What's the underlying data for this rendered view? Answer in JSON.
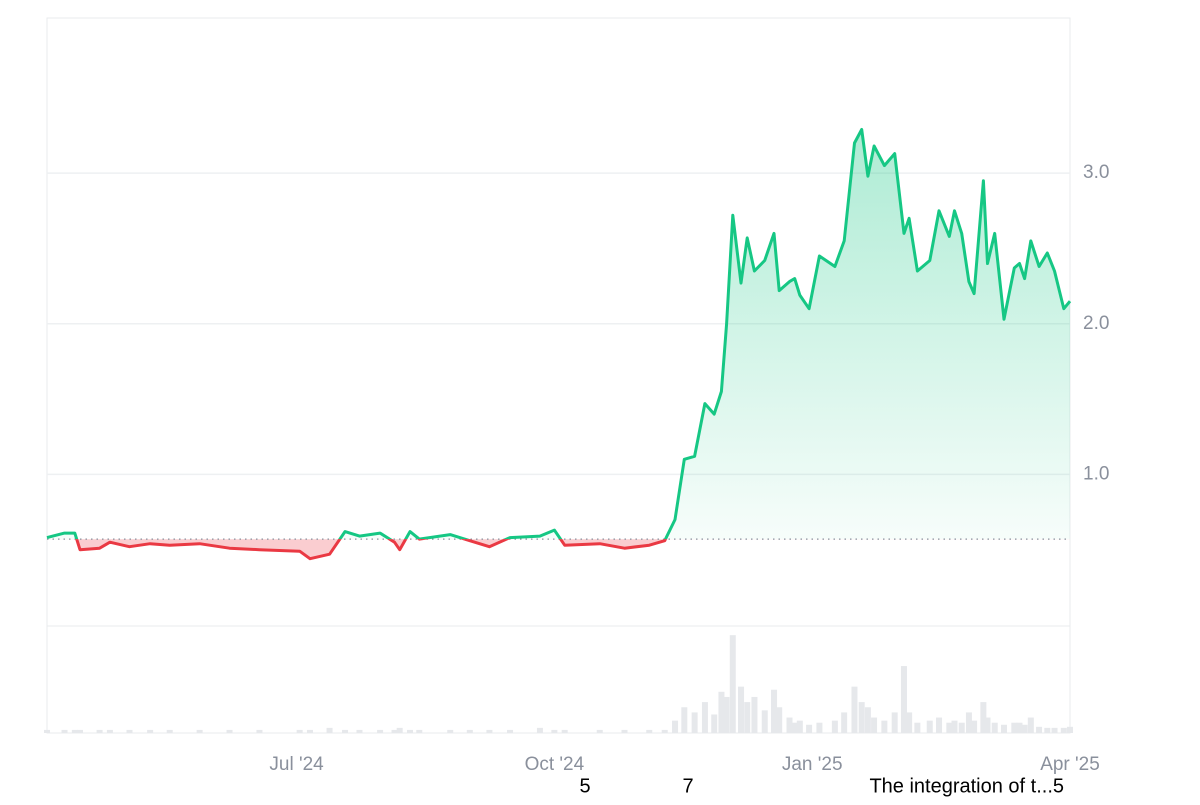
{
  "chart_data": {
    "type": "line",
    "x": [
      2024.258,
      2024.275,
      2024.285,
      2024.29,
      2024.309,
      2024.319,
      2024.338,
      2024.358,
      2024.377,
      2024.406,
      2024.435,
      2024.464,
      2024.503,
      2024.513,
      2024.532,
      2024.547,
      2024.561,
      2024.581,
      2024.595,
      2024.6,
      2024.61,
      2024.619,
      2024.649,
      2024.668,
      2024.687,
      2024.707,
      2024.736,
      2024.75,
      2024.76,
      2024.794,
      2024.818,
      2024.842,
      2024.857,
      2024.867,
      2024.876,
      2024.886,
      2024.896,
      2024.905,
      2024.912,
      2024.917,
      2024.923,
      2024.931,
      2024.937,
      2024.944,
      2024.954,
      2024.963,
      2024.968,
      2024.978,
      2024.983,
      2024.988,
      2024.997,
      2025.007,
      2025.022,
      2025.031,
      2025.041,
      2025.048,
      2025.054,
      2025.06,
      2025.07,
      2025.08,
      2025.089,
      2025.094,
      2025.102,
      2025.114,
      2025.123,
      2025.133,
      2025.138,
      2025.145,
      2025.152,
      2025.157,
      2025.166,
      2025.17,
      2025.177,
      2025.186,
      2025.196,
      2025.201,
      2025.206,
      2025.212,
      2025.22,
      2025.228,
      2025.235,
      2025.244,
      2025.25
    ],
    "values": [
      0.58,
      0.61,
      0.61,
      0.5,
      0.51,
      0.55,
      0.52,
      0.54,
      0.53,
      0.54,
      0.51,
      0.5,
      0.49,
      0.44,
      0.47,
      0.62,
      0.59,
      0.61,
      0.55,
      0.5,
      0.62,
      0.57,
      0.6,
      0.56,
      0.52,
      0.58,
      0.59,
      0.63,
      0.53,
      0.54,
      0.51,
      0.53,
      0.56,
      0.7,
      1.1,
      1.12,
      1.47,
      1.4,
      1.55,
      2.0,
      2.72,
      2.27,
      2.57,
      2.35,
      2.42,
      2.6,
      2.22,
      2.28,
      2.3,
      2.19,
      2.1,
      2.45,
      2.38,
      2.55,
      3.2,
      3.29,
      2.98,
      3.18,
      3.05,
      3.13,
      2.6,
      2.7,
      2.35,
      2.42,
      2.75,
      2.58,
      2.75,
      2.6,
      2.28,
      2.2,
      2.95,
      2.4,
      2.6,
      2.03,
      2.37,
      2.4,
      2.3,
      2.55,
      2.38,
      2.47,
      2.35,
      2.1,
      2.15
    ],
    "color_up": "#16c784",
    "color_down": "#ea3943",
    "baseline": 0.57,
    "volume": {
      "color": "#e6e8eb",
      "vlim": [
        0,
        100
      ],
      "values": [
        3,
        3,
        3,
        3,
        3,
        3,
        3,
        3,
        3,
        3,
        3,
        3,
        3,
        3,
        5,
        3,
        3,
        3,
        3,
        5,
        3,
        3,
        3,
        3,
        3,
        3,
        5,
        3,
        3,
        3,
        3,
        3,
        3,
        12,
        25,
        20,
        30,
        18,
        40,
        35,
        95,
        45,
        30,
        35,
        22,
        42,
        25,
        15,
        10,
        12,
        8,
        10,
        12,
        20,
        45,
        30,
        25,
        15,
        12,
        20,
        65,
        20,
        10,
        12,
        15,
        10,
        12,
        10,
        20,
        12,
        30,
        15,
        10,
        8,
        10,
        10,
        8,
        15,
        6,
        5,
        5,
        5,
        6
      ]
    },
    "xlim": [
      2024.258,
      2025.25
    ],
    "xticks": [
      {
        "value": 2024.5,
        "label": "Jul '24"
      },
      {
        "value": 2024.75,
        "label": "Oct '24"
      },
      {
        "value": 2025.0,
        "label": "Jan '25"
      },
      {
        "value": 2025.25,
        "label": "Apr '25"
      }
    ],
    "ylim": [
      0,
      4.03
    ],
    "yticks": [
      {
        "value": 1,
        "label": "1.0"
      },
      {
        "value": 2,
        "label": "2.0"
      },
      {
        "value": 3,
        "label": "3.0"
      }
    ],
    "grid": true,
    "annotations": [
      "5",
      "7",
      "The integration of t...5"
    ]
  }
}
